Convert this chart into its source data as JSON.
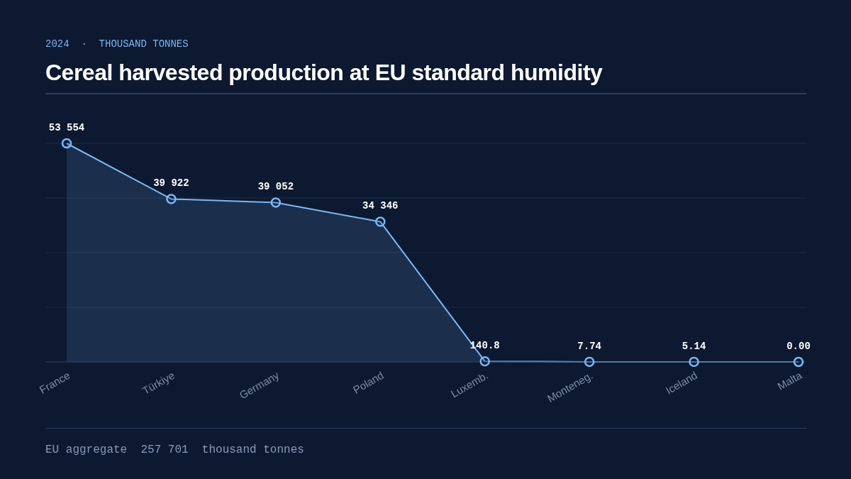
{
  "chart_data": {
    "type": "area",
    "subtitle": "2024  ·  THOUSAND TONNES",
    "title": "Cereal harvested production at EU standard humidity",
    "categories": [
      "France",
      "Türkiye",
      "Germany",
      "Poland",
      "Luxemb.",
      "Monteneg.",
      "Iceland",
      "Malta"
    ],
    "series": [
      {
        "color": "#7ab8f5",
        "values": [
          53554,
          39922,
          39052,
          34346,
          140.8,
          7.74,
          5.14,
          0.0
        ],
        "value_labels": [
          "53 554",
          "39 922",
          "39 052",
          "34 346",
          "140.8",
          "7.74",
          "5.14",
          "0.00"
        ]
      }
    ],
    "ylim": [
      0,
      53554
    ],
    "yticks": [
      {
        "value": 0,
        "label": null
      },
      {
        "value": 13389,
        "label": null
      },
      {
        "value": 26777,
        "label": null
      },
      {
        "value": 40166,
        "label": null
      },
      {
        "value": 53554,
        "label": null
      }
    ],
    "grid": "y",
    "tick_labels": "x",
    "marker": "circle",
    "line_style": "solid",
    "annotations": [
      "EU aggregate  257 701  thousand tonnes"
    ]
  }
}
